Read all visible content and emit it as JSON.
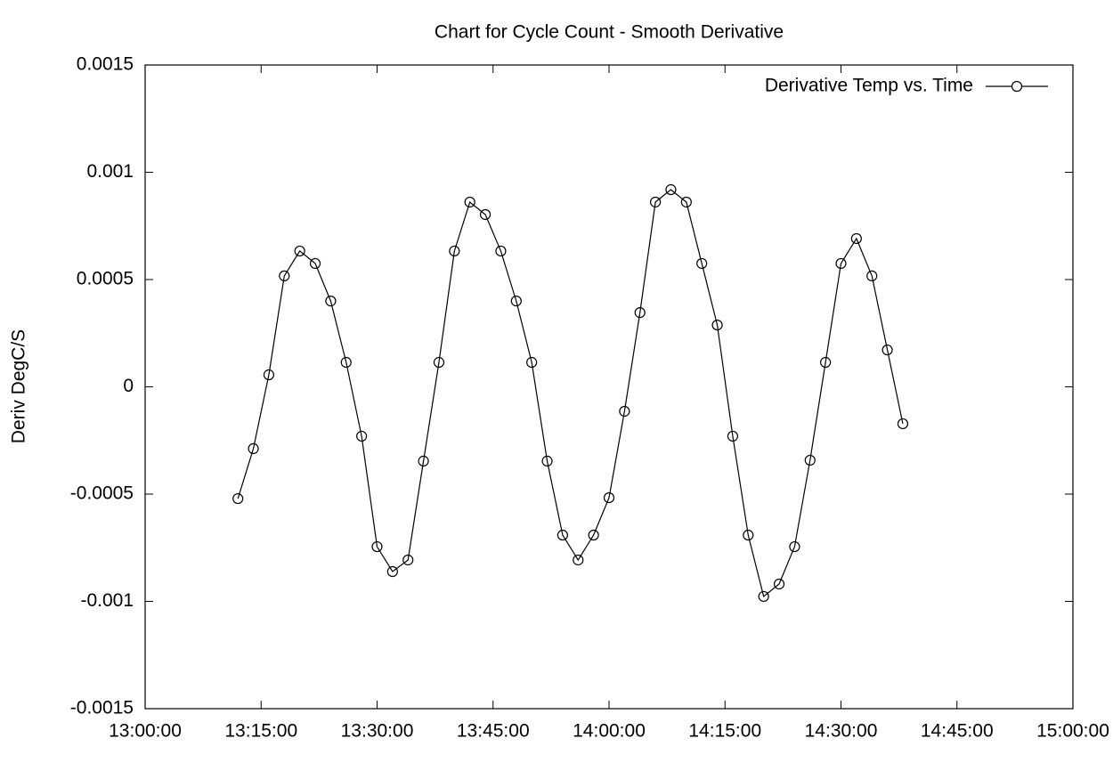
{
  "chart_data": {
    "type": "line",
    "title": "Chart for Cycle Count - Smooth Derivative",
    "y_label": "Deriv DegC/S",
    "legend": "top-right",
    "x": [
      "13:12:00",
      "13:14:00",
      "13:16:00",
      "13:18:00",
      "13:20:00",
      "13:22:00",
      "13:24:00",
      "13:26:00",
      "13:28:00",
      "13:30:00",
      "13:32:00",
      "13:34:00",
      "13:36:00",
      "13:38:00",
      "13:40:00",
      "13:42:00",
      "13:44:00",
      "13:46:00",
      "13:48:00",
      "13:50:00",
      "13:52:00",
      "13:54:00",
      "13:56:00",
      "13:58:00",
      "14:00:00",
      "14:02:00",
      "14:04:00",
      "14:06:00",
      "14:08:00",
      "14:10:00",
      "14:12:00",
      "14:14:00",
      "14:16:00",
      "14:18:00",
      "14:20:00",
      "14:22:00",
      "14:24:00",
      "14:26:00",
      "14:28:00",
      "14:30:00",
      "14:32:00",
      "14:34:00",
      "14:36:00",
      "14:38:00"
    ],
    "series": [
      {
        "name": "Derivative Temp vs. Time",
        "color": "#000000",
        "values": [
          -0.000521,
          -0.000288,
          5.6e-05,
          0.000517,
          0.000633,
          0.000575,
          0.0004,
          0.000114,
          -0.00023,
          -0.000745,
          -0.000861,
          -0.000807,
          -0.000346,
          0.000114,
          0.000633,
          0.000861,
          0.000803,
          0.000633,
          0.0004,
          0.000114,
          -0.000346,
          -0.000691,
          -0.000807,
          -0.000691,
          -0.000517,
          -0.000114,
          0.000346,
          0.000861,
          0.000919,
          0.000861,
          0.000575,
          0.000288,
          -0.00023,
          -0.000691,
          -0.000977,
          -0.000919,
          -0.000745,
          -0.000342,
          0.000114,
          0.000575,
          0.000691,
          0.000517,
          0.000172,
          -0.000172
        ]
      }
    ],
    "xlim": [
      "13:00:00",
      "15:00:00"
    ],
    "xticks": [
      "13:00:00",
      "13:15:00",
      "13:30:00",
      "13:45:00",
      "14:00:00",
      "14:15:00",
      "14:30:00",
      "14:45:00",
      "15:00:00"
    ],
    "ylim": [
      -0.0015,
      0.0015
    ],
    "yticks": [
      -0.0015,
      -0.001,
      -0.0005,
      0,
      0.0005,
      0.001,
      0.0015
    ]
  }
}
